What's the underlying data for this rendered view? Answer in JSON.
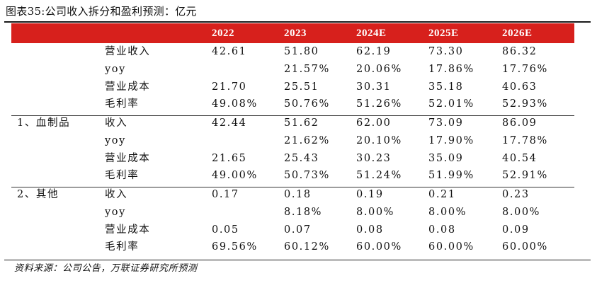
{
  "title": "图表35:公司收入拆分和盈利预测：亿元",
  "years": [
    "2022",
    "2023",
    "2024E",
    "2025E",
    "2026E"
  ],
  "groups": [
    {
      "segment": "",
      "rows": [
        {
          "metric": "营业收入",
          "values": [
            "42.61",
            "51.80",
            "62.19",
            "73.30",
            "86.32"
          ]
        },
        {
          "metric": "yoy",
          "values": [
            "",
            "21.57%",
            "20.06%",
            "17.86%",
            "17.76%"
          ]
        },
        {
          "metric": "营业成本",
          "values": [
            "21.70",
            "25.51",
            "30.31",
            "35.18",
            "40.63"
          ]
        },
        {
          "metric": "毛利率",
          "values": [
            "49.08%",
            "50.76%",
            "51.26%",
            "52.01%",
            "52.93%"
          ]
        }
      ]
    },
    {
      "segment": "1、血制品",
      "rows": [
        {
          "metric": "收入",
          "values": [
            "42.44",
            "51.62",
            "62.00",
            "73.09",
            "86.09"
          ]
        },
        {
          "metric": "yoy",
          "values": [
            "",
            "21.62%",
            "20.10%",
            "17.90%",
            "17.78%"
          ]
        },
        {
          "metric": "营业成本",
          "values": [
            "21.65",
            "25.43",
            "30.23",
            "35.09",
            "40.54"
          ]
        },
        {
          "metric": "毛利率",
          "values": [
            "49.00%",
            "50.73%",
            "51.24%",
            "51.99%",
            "52.91%"
          ]
        }
      ]
    },
    {
      "segment": "2、其他",
      "rows": [
        {
          "metric": "收入",
          "values": [
            "0.17",
            "0.18",
            "0.19",
            "0.21",
            "0.23"
          ]
        },
        {
          "metric": "yoy",
          "values": [
            "",
            "8.18%",
            "8.00%",
            "8.00%",
            "8.00%"
          ]
        },
        {
          "metric": "营业成本",
          "values": [
            "0.05",
            "0.07",
            "0.08",
            "0.08",
            "0.09"
          ]
        },
        {
          "metric": "毛利率",
          "values": [
            "69.56%",
            "60.12%",
            "60.00%",
            "60.00%",
            "60.00%"
          ]
        }
      ]
    }
  ],
  "source": "资料来源：公司公告，万联证券研究所预测",
  "colors": {
    "header_band": "#d7201c",
    "header_text": "#ffffff",
    "text": "#111111"
  }
}
